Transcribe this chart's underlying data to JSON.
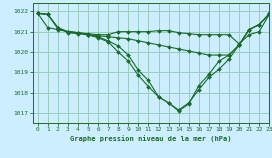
{
  "title": "Graphe pression niveau de la mer (hPa)",
  "bg_color": "#cceeff",
  "grid_color": "#99ccbb",
  "line_color": "#1a6b2a",
  "xlim": [
    -0.5,
    23
  ],
  "ylim": [
    1016.5,
    1022.4
  ],
  "yticks": [
    1017,
    1018,
    1019,
    1020,
    1021,
    1022
  ],
  "xticks": [
    0,
    1,
    2,
    3,
    4,
    5,
    6,
    7,
    8,
    9,
    10,
    11,
    12,
    13,
    14,
    15,
    16,
    17,
    18,
    19,
    20,
    21,
    22,
    23
  ],
  "series": [
    {
      "x": [
        0,
        1,
        2,
        3,
        4,
        5,
        6,
        7,
        8,
        9,
        10,
        11,
        12,
        13,
        14,
        15,
        16,
        17,
        18,
        19,
        20,
        21,
        22,
        23
      ],
      "y": [
        1021.9,
        1021.85,
        1021.15,
        1021.0,
        1020.95,
        1020.9,
        1020.85,
        1020.85,
        1021.0,
        1021.0,
        1021.0,
        1021.0,
        1021.05,
        1021.05,
        1020.95,
        1020.9,
        1020.85,
        1020.85,
        1020.85,
        1020.85,
        1020.4,
        1020.85,
        1021.0,
        1021.85
      ]
    },
    {
      "x": [
        0,
        1,
        2,
        3,
        4,
        5,
        6,
        7,
        8,
        9,
        10,
        11,
        12,
        13,
        14,
        15,
        16,
        17,
        18,
        19,
        20,
        21,
        22,
        23
      ],
      "y": [
        1021.9,
        1021.85,
        1021.2,
        1020.95,
        1020.9,
        1020.85,
        1020.8,
        1020.75,
        1020.7,
        1020.65,
        1020.55,
        1020.45,
        1020.35,
        1020.25,
        1020.15,
        1020.05,
        1019.95,
        1019.85,
        1019.85,
        1019.85,
        1020.35,
        1021.1,
        1021.35,
        1021.85
      ]
    },
    {
      "x": [
        0,
        1,
        2,
        3,
        4,
        5,
        6,
        7,
        8,
        9,
        10,
        11,
        12,
        13,
        14,
        15,
        16,
        17,
        18,
        19,
        20,
        21,
        22,
        23
      ],
      "y": [
        1021.9,
        1021.2,
        1021.1,
        1021.0,
        1020.95,
        1020.85,
        1020.75,
        1020.55,
        1020.3,
        1019.85,
        1019.1,
        1018.6,
        1017.8,
        1017.5,
        1017.15,
        1017.5,
        1018.15,
        1018.75,
        1019.15,
        1019.65,
        1020.35,
        1021.1,
        1021.35,
        1021.85
      ]
    },
    {
      "x": [
        0,
        1,
        2,
        3,
        4,
        5,
        6,
        7,
        8,
        9,
        10,
        11,
        12,
        13,
        14,
        15,
        16,
        17,
        18,
        19,
        20,
        21,
        22,
        23
      ],
      "y": [
        1021.9,
        1021.85,
        1021.2,
        1021.0,
        1020.95,
        1020.85,
        1020.7,
        1020.5,
        1020.0,
        1019.55,
        1018.85,
        1018.3,
        1017.8,
        1017.5,
        1017.1,
        1017.45,
        1018.35,
        1018.9,
        1019.55,
        1019.85,
        1020.35,
        1021.1,
        1021.35,
        1021.9
      ]
    }
  ]
}
